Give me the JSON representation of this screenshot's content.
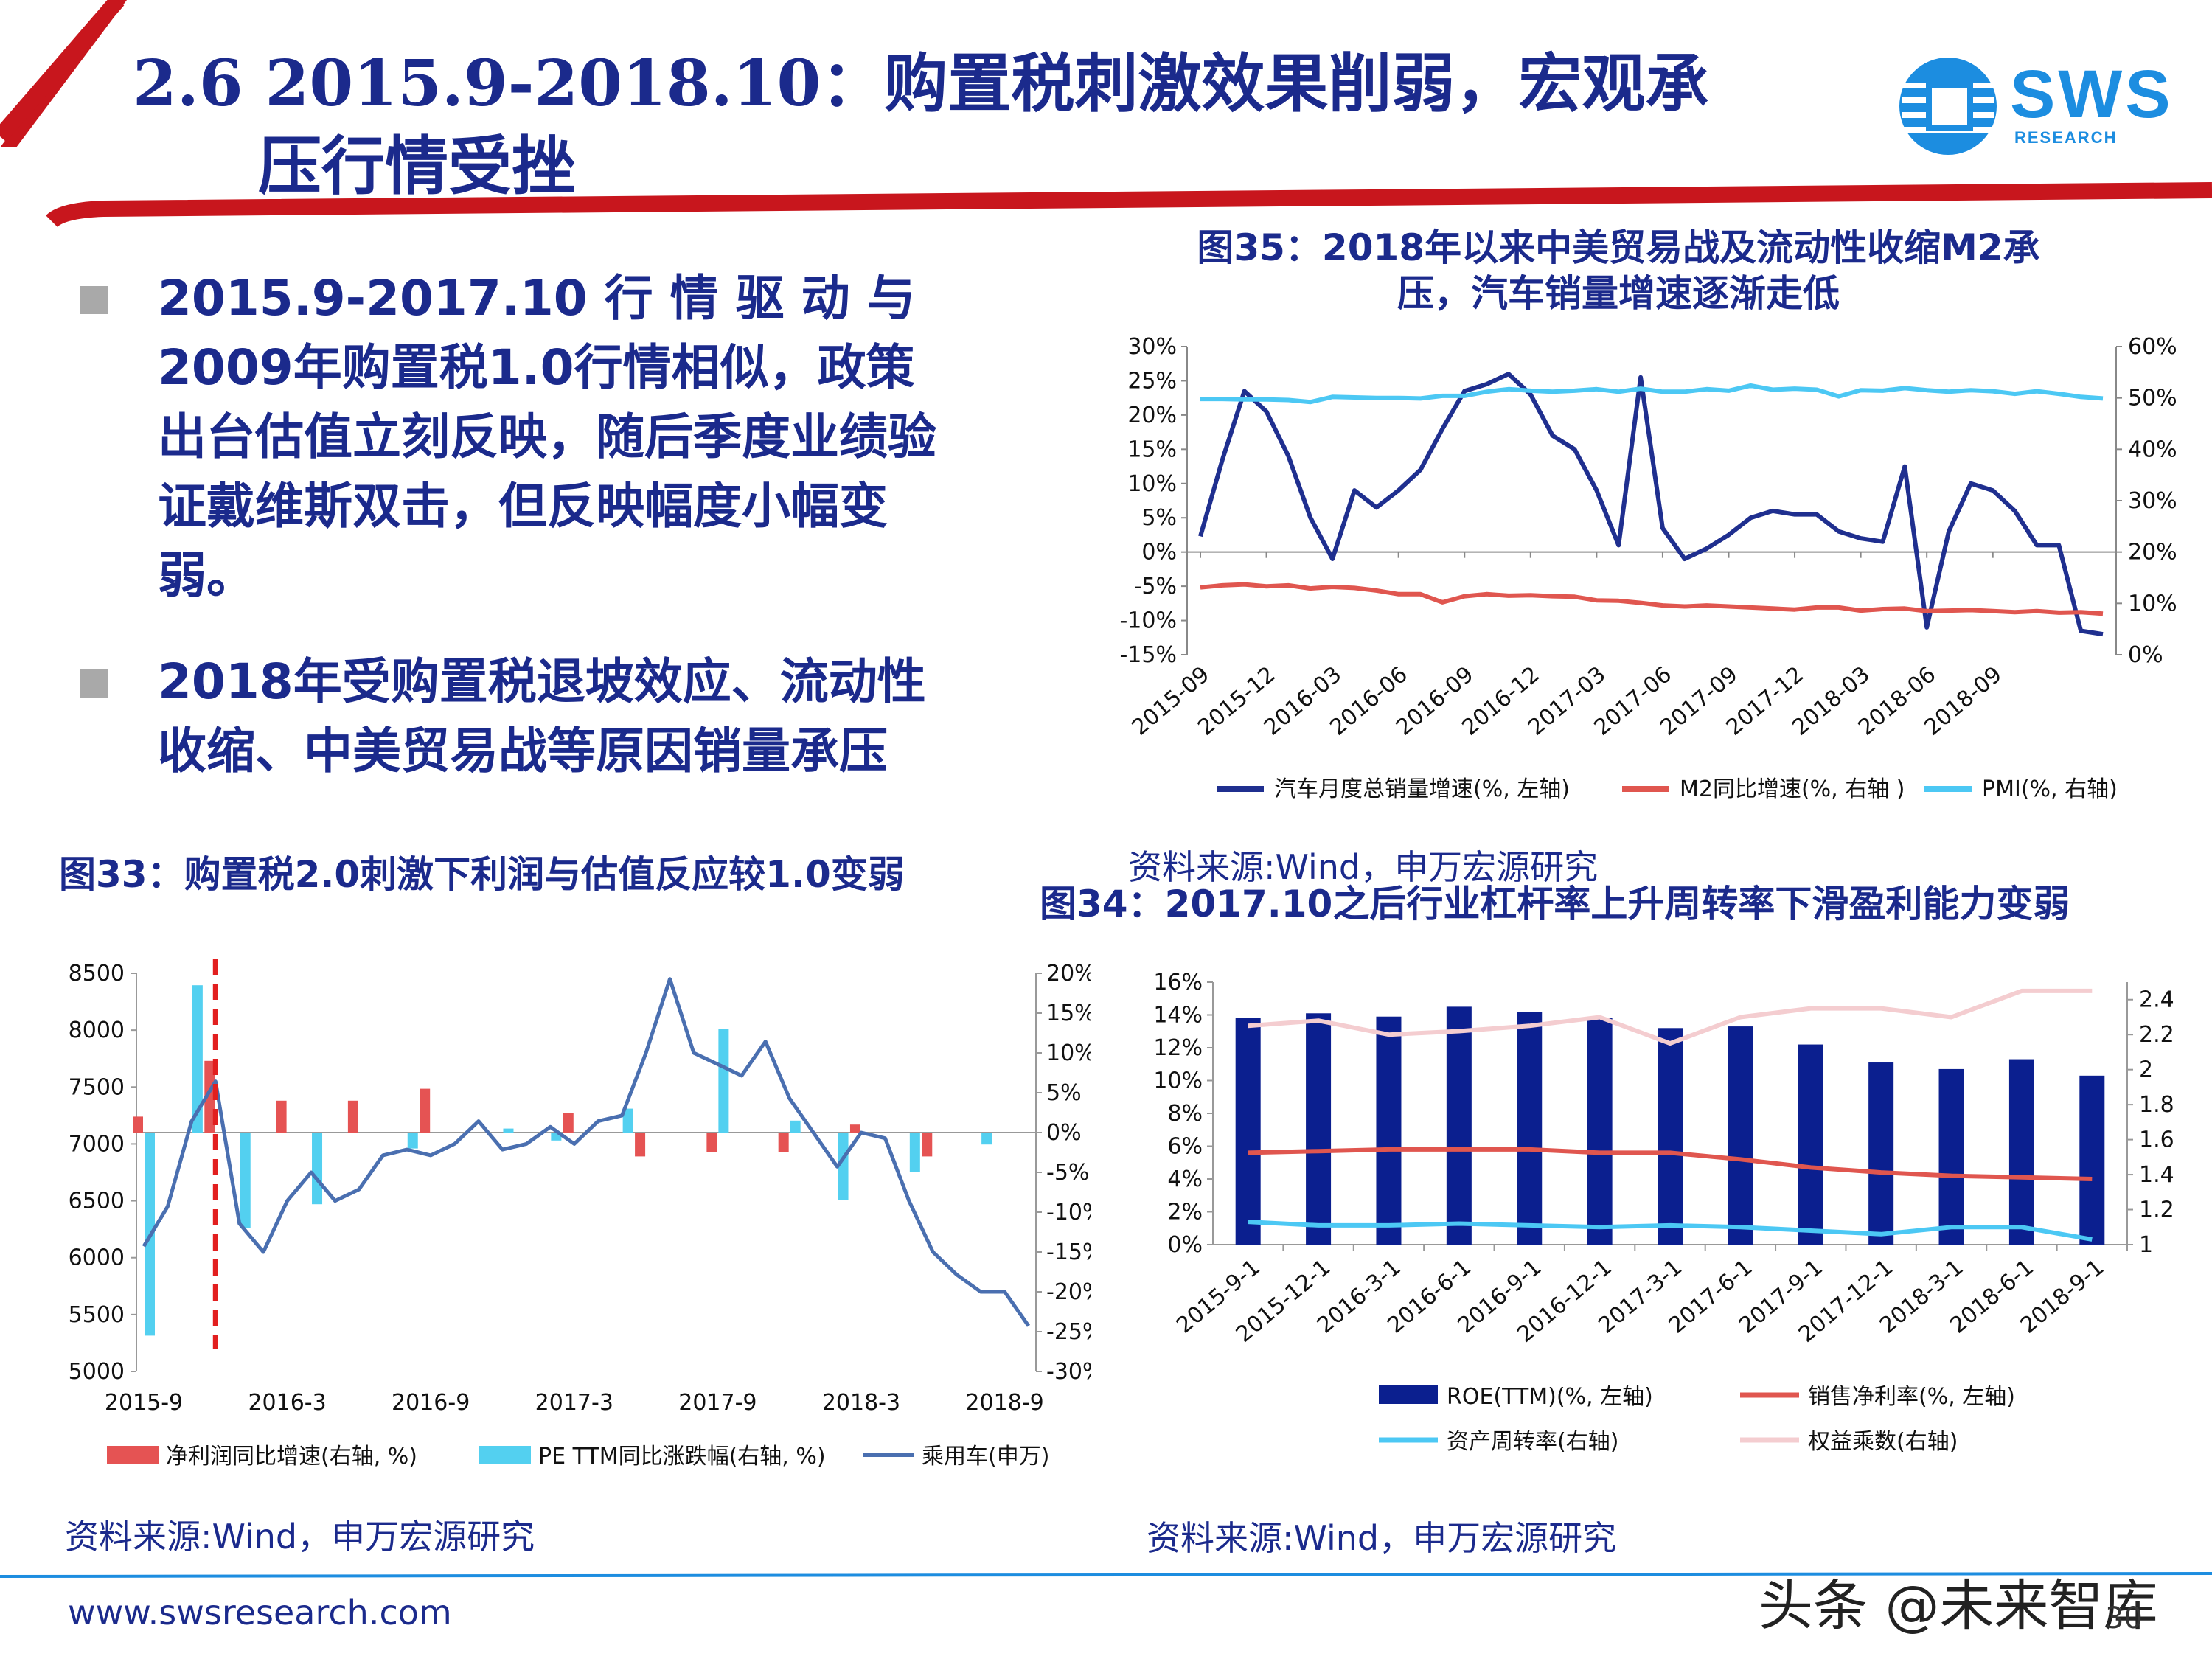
{
  "header": {
    "title_line1": "2.6 2015.9-2018.10：购置税刺激效果削弱，宏观承",
    "title_line2": "压行情受挫",
    "logo_text": "SWS",
    "logo_subtext": "RESEARCH",
    "colors": {
      "accent_red": "#c8161d",
      "title_blue": "#1b2a8c"
    }
  },
  "bullets": [
    "2015.9-2017.10 行 情 驱 动 与 2009年购置税1.0行情相似，政策出台估值立刻反映，随后季度业绩验证戴维斯双击，但反映幅度小幅变弱。",
    "2018年受购置税退坡效应、流动性收缩、中美贸易战等原因销量承压"
  ],
  "fig35": {
    "title_line1": "图35：2018年以来中美贸易战及流动性收缩M2承",
    "title_line2": "压，汽车销量增速逐渐走低",
    "source": "资料来源:Wind，申万宏源研究"
  },
  "fig33": {
    "title": "图33：购置税2.0刺激下利润与估值反应较1.0变弱",
    "source": "资料来源:Wind，申万宏源研究"
  },
  "fig34": {
    "title": "图34：2017.10之后行业杠杆率上升周转率下滑盈利能力变弱",
    "source": "资料来源:Wind，申万宏源研究"
  },
  "footer": {
    "url": "www.swsresearch.com",
    "page_number": "30",
    "watermark": "头条 @未来智库"
  },
  "chart_data": [
    {
      "id": "fig35",
      "type": "line",
      "x_tick_labels": [
        "2015-09",
        "2015-12",
        "2016-03",
        "2016-06",
        "2016-09",
        "2016-12",
        "2017-03",
        "2017-06",
        "2017-09",
        "2017-12",
        "2018-03",
        "2018-06",
        "2018-09"
      ],
      "y_left_ticks": [
        "30%",
        "25%",
        "20%",
        "15%",
        "10%",
        "5%",
        "0%",
        "-5%",
        "-10%",
        "-15%"
      ],
      "y_right_ticks": [
        "60%",
        "50%",
        "40%",
        "30%",
        "20%",
        "10%",
        "0%"
      ],
      "ylim_left": [
        -15,
        30
      ],
      "ylim_right": [
        0,
        60
      ],
      "grid": false,
      "legend_position": "bottom",
      "series": [
        {
          "name": "汽车月度总销量增速(%, 左轴)",
          "axis": "left",
          "color": "#1f2f8f",
          "values": [
            2.3,
            13.5,
            23.5,
            20.5,
            14,
            5,
            -1,
            9,
            6.5,
            9,
            12,
            18,
            23.5,
            24.5,
            26,
            23,
            17,
            15,
            9,
            1,
            25.5,
            3.5,
            -1,
            0.5,
            2.5,
            5,
            6,
            5.5,
            5.5,
            3,
            2,
            1.5,
            12.5,
            -11,
            3,
            10,
            9,
            6,
            1,
            1,
            -11.5,
            -12
          ]
        },
        {
          "name": "M2同比增速(%, 右轴 )",
          "axis": "right",
          "color": "#e0564f",
          "values": [
            13.1,
            13.5,
            13.7,
            13.3,
            13.5,
            12.9,
            13.2,
            13.0,
            12.5,
            11.8,
            11.8,
            10.2,
            11.4,
            11.8,
            11.5,
            11.6,
            11.4,
            11.3,
            10.6,
            10.5,
            10.1,
            9.6,
            9.4,
            9.6,
            9.4,
            9.2,
            9.0,
            8.8,
            9.2,
            9.2,
            8.6,
            8.9,
            9.0,
            8.5,
            8.6,
            8.7,
            8.5,
            8.3,
            8.5,
            8.2,
            8.3,
            8.0
          ]
        },
        {
          "name": "PMI(%, 右轴)",
          "axis": "right",
          "color": "#4cc8f4",
          "values": [
            49.8,
            49.8,
            49.7,
            49.7,
            49.6,
            49.2,
            50.2,
            50.1,
            50.0,
            50.0,
            49.9,
            50.4,
            50.4,
            51.2,
            51.7,
            51.4,
            51.2,
            51.4,
            51.7,
            51.2,
            51.8,
            51.2,
            51.2,
            51.7,
            51.4,
            52.4,
            51.6,
            51.8,
            51.6,
            50.3,
            51.5,
            51.4,
            51.9,
            51.5,
            51.2,
            51.5,
            51.3,
            50.8,
            51.3,
            50.8,
            50.2,
            49.9
          ]
        }
      ]
    },
    {
      "id": "fig33",
      "type": "bar",
      "x_tick_labels": [
        "2015-9",
        "2016-3",
        "2016-9",
        "2017-3",
        "2017-9",
        "2018-3",
        "2018-9"
      ],
      "y_left_ticks": [
        "8500",
        "8000",
        "7500",
        "7000",
        "6500",
        "6000",
        "5500",
        "5000"
      ],
      "y_right_ticks": [
        "20%",
        "15%",
        "10%",
        "5%",
        "0%",
        "-5%",
        "-10%",
        "-15%",
        "-20%",
        "-25%",
        "-30%"
      ],
      "ylim_left": [
        5000,
        8500
      ],
      "ylim_right": [
        -30,
        20
      ],
      "grid": false,
      "legend_position": "bottom",
      "marker": {
        "label": "dashed red vertical line",
        "at": "2015-12"
      },
      "series": [
        {
          "name": "净利润同比增速(右轴, %)",
          "type": "bar",
          "axis": "right",
          "color": "#e55353",
          "points": [
            [
              "2015-9",
              2
            ],
            [
              "2015-12",
              9
            ],
            [
              "2016-3",
              4
            ],
            [
              "2016-6",
              4
            ],
            [
              "2016-9",
              5.5
            ],
            [
              "2016-12",
              0
            ],
            [
              "2017-3",
              2.5
            ],
            [
              "2017-6",
              -3
            ],
            [
              "2017-9",
              -2.5
            ],
            [
              "2017-12",
              -2.5
            ],
            [
              "2018-3",
              1
            ],
            [
              "2018-6",
              -3
            ]
          ]
        },
        {
          "name": "PE TTM同比涨跌幅(右轴, %)",
          "type": "bar",
          "axis": "right",
          "color": "#53d0f0",
          "points": [
            [
              "2015-9",
              -25.5
            ],
            [
              "2015-11",
              18.5
            ],
            [
              "2016-1",
              -12
            ],
            [
              "2016-4",
              -9
            ],
            [
              "2016-8",
              -2
            ],
            [
              "2016-12",
              0.5
            ],
            [
              "2017-2",
              -1
            ],
            [
              "2017-5",
              3
            ],
            [
              "2017-9",
              13
            ],
            [
              "2017-12",
              1.5
            ],
            [
              "2018-2",
              -8.5
            ],
            [
              "2018-5",
              -5
            ],
            [
              "2018-8",
              -1.5
            ]
          ]
        },
        {
          "name": "乘用车(申万)",
          "type": "line",
          "axis": "left",
          "color": "#4a6fb0",
          "points": [
            [
              "2015-9",
              6100
            ],
            [
              "2015-10",
              6450
            ],
            [
              "2015-11",
              7200
            ],
            [
              "2015-12",
              7550
            ],
            [
              "2016-1",
              6300
            ],
            [
              "2016-2",
              6050
            ],
            [
              "2016-3",
              6500
            ],
            [
              "2016-4",
              6750
            ],
            [
              "2016-5",
              6500
            ],
            [
              "2016-6",
              6600
            ],
            [
              "2016-7",
              6900
            ],
            [
              "2016-8",
              6950
            ],
            [
              "2016-9",
              6900
            ],
            [
              "2016-10",
              7000
            ],
            [
              "2016-11",
              7200
            ],
            [
              "2016-12",
              6950
            ],
            [
              "2017-1",
              7000
            ],
            [
              "2017-2",
              7150
            ],
            [
              "2017-3",
              7000
            ],
            [
              "2017-4",
              7200
            ],
            [
              "2017-5",
              7250
            ],
            [
              "2017-6",
              7800
            ],
            [
              "2017-7",
              8450
            ],
            [
              "2017-8",
              7800
            ],
            [
              "2017-9",
              7700
            ],
            [
              "2017-10",
              7600
            ],
            [
              "2017-11",
              7900
            ],
            [
              "2017-12",
              7400
            ],
            [
              "2018-1",
              7100
            ],
            [
              "2018-2",
              6800
            ],
            [
              "2018-3",
              7100
            ],
            [
              "2018-4",
              7050
            ],
            [
              "2018-5",
              6500
            ],
            [
              "2018-6",
              6050
            ],
            [
              "2018-7",
              5850
            ],
            [
              "2018-8",
              5700
            ],
            [
              "2018-9",
              5700
            ],
            [
              "2018-10",
              5400
            ]
          ]
        }
      ]
    },
    {
      "id": "fig34",
      "type": "bar",
      "categories": [
        "2015-9-1",
        "2015-12-1",
        "2016-3-1",
        "2016-6-1",
        "2016-9-1",
        "2016-12-1",
        "2017-3-1",
        "2017-6-1",
        "2017-9-1",
        "2017-12-1",
        "2018-3-1",
        "2018-6-1",
        "2018-9-1"
      ],
      "y_left_ticks": [
        "16%",
        "14%",
        "12%",
        "10%",
        "8%",
        "6%",
        "4%",
        "2%",
        "0%"
      ],
      "y_right_ticks": [
        "2.4",
        "2.2",
        "2",
        "1.8",
        "1.6",
        "1.4",
        "1.2",
        "1"
      ],
      "ylim_left": [
        0,
        16
      ],
      "ylim_right": [
        1,
        2.5
      ],
      "grid": false,
      "legend_position": "bottom",
      "series": [
        {
          "name": "ROE(TTM)(%, 左轴)",
          "type": "bar",
          "axis": "left",
          "color": "#0b1f8f",
          "values": [
            13.8,
            14.1,
            13.9,
            14.5,
            14.2,
            13.8,
            13.2,
            13.3,
            12.2,
            11.1,
            10.7,
            11.3,
            10.3
          ]
        },
        {
          "name": "销售净利率(%, 左轴)",
          "type": "line",
          "axis": "left",
          "color": "#e0564f",
          "values": [
            5.6,
            5.7,
            5.8,
            5.8,
            5.8,
            5.6,
            5.6,
            5.2,
            4.7,
            4.4,
            4.2,
            4.1,
            4.0
          ]
        },
        {
          "name": "资产周转率(右轴)",
          "type": "line",
          "axis": "right",
          "color": "#4cc8f4",
          "values": [
            1.13,
            1.11,
            1.11,
            1.12,
            1.11,
            1.1,
            1.11,
            1.1,
            1.08,
            1.06,
            1.1,
            1.1,
            1.03
          ]
        },
        {
          "name": "权益乘数(右轴)",
          "type": "line",
          "axis": "right",
          "color": "#f4cdd0",
          "values": [
            2.25,
            2.28,
            2.2,
            2.22,
            2.25,
            2.3,
            2.15,
            2.3,
            2.35,
            2.35,
            2.3,
            2.45,
            2.45
          ]
        }
      ]
    }
  ]
}
